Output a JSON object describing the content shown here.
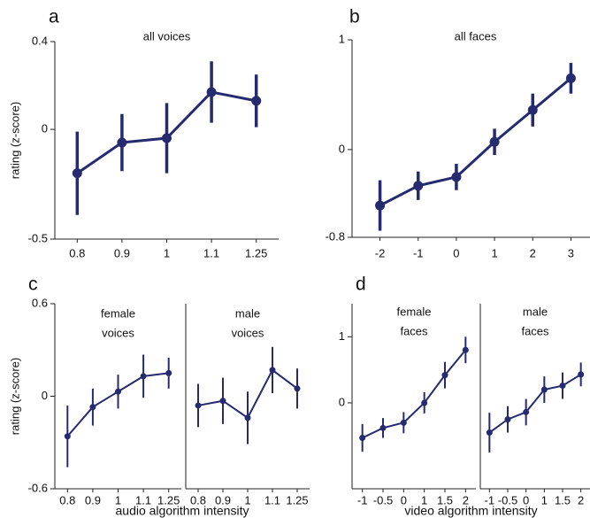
{
  "chart_data": [
    {
      "type": "line",
      "label": "a",
      "ylabel": "rating (z-score)",
      "color": "#262a6e",
      "ylim": [
        -0.5,
        0.4
      ],
      "yticks": [
        -0.5,
        0,
        0.4
      ],
      "categories": [
        "0.8",
        "0.9",
        "1",
        "1.1",
        "1.25"
      ],
      "panels": [
        {
          "title": [
            "all voices"
          ],
          "values": [
            -0.2,
            -0.06,
            -0.04,
            0.17,
            0.13
          ],
          "errors": [
            0.19,
            0.13,
            0.16,
            0.14,
            0.12
          ]
        }
      ]
    },
    {
      "type": "line",
      "label": "b",
      "color": "#262a6e",
      "ylim": [
        -0.8,
        1
      ],
      "yticks": [
        -0.8,
        0,
        1
      ],
      "categories": [
        "-2",
        "-1",
        "0",
        "1",
        "2",
        "3"
      ],
      "panels": [
        {
          "title": [
            "all faces"
          ],
          "values": [
            -0.51,
            -0.33,
            -0.25,
            0.07,
            0.36,
            0.65
          ],
          "errors": [
            0.23,
            0.13,
            0.12,
            0.12,
            0.15,
            0.14
          ]
        }
      ]
    },
    {
      "type": "line",
      "label": "c",
      "ylabel": "rating  (z-score)",
      "xlabel": "audio algorithm intensity",
      "color": "#262a6e",
      "ylim": [
        -0.6,
        0.6
      ],
      "yticks": [
        -0.6,
        0,
        0.6
      ],
      "categories": [
        "0.8",
        "0.9",
        "1",
        "1.1",
        "1.25"
      ],
      "panels": [
        {
          "title": [
            "female",
            "voices"
          ],
          "values": [
            -0.26,
            -0.07,
            0.03,
            0.13,
            0.15
          ],
          "errors": [
            0.2,
            0.12,
            0.11,
            0.14,
            0.1
          ]
        },
        {
          "title": [
            "male",
            "voices"
          ],
          "values": [
            -0.06,
            -0.03,
            -0.14,
            0.17,
            0.05
          ],
          "errors": [
            0.14,
            0.15,
            0.17,
            0.15,
            0.13
          ]
        }
      ]
    },
    {
      "type": "line",
      "label": "d",
      "xlabel": "video algorithm intensity",
      "color": "#262a6e",
      "ylim": [
        -1.3,
        1.5
      ],
      "yticks": [
        0,
        1
      ],
      "categories": [
        "-1",
        "-0.5",
        "0",
        "1",
        "1.5",
        "2"
      ],
      "panels": [
        {
          "title": [
            "female",
            "faces"
          ],
          "values": [
            -0.53,
            -0.38,
            -0.3,
            0,
            0.42,
            0.8
          ],
          "errors": [
            0.21,
            0.15,
            0.16,
            0.16,
            0.2,
            0.2
          ]
        },
        {
          "title": [
            "male",
            "faces"
          ],
          "values": [
            -0.45,
            -0.25,
            -0.14,
            0.2,
            0.26,
            0.43
          ],
          "errors": [
            0.3,
            0.2,
            0.2,
            0.2,
            0.2,
            0.18
          ]
        }
      ]
    }
  ]
}
